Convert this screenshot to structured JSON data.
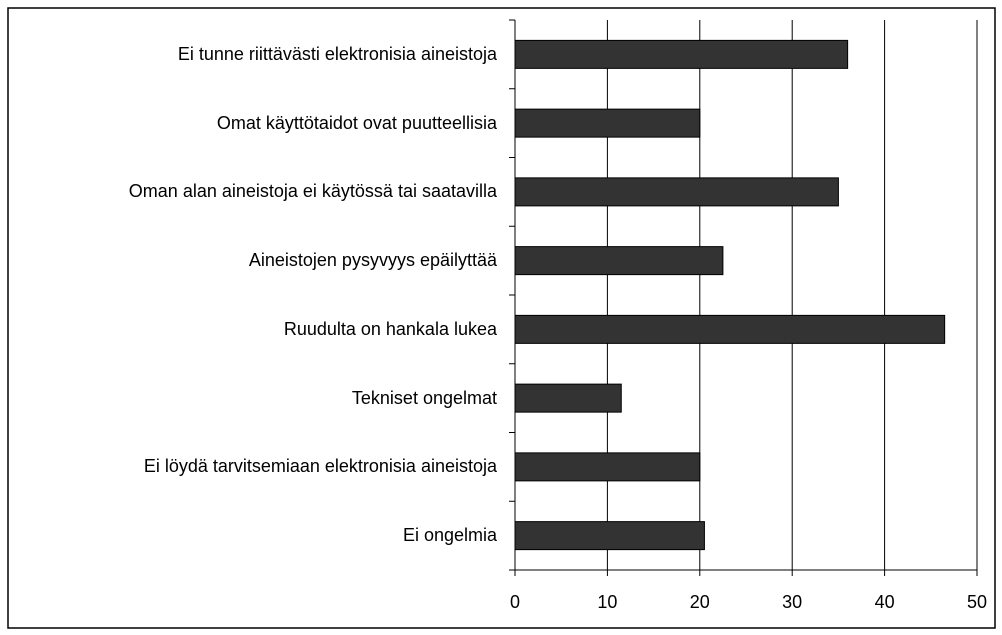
{
  "chart_data": {
    "type": "barh",
    "categories": [
      "Ei tunne riittävästi elektronisia aineistoja",
      "Omat käyttötaidot ovat puutteellisia",
      "Oman alan aineistoja ei käytössä tai saatavilla",
      "Aineistojen pysyvyys epäilyttää",
      "Ruudulta on hankala lukea",
      "Tekniset ongelmat",
      "Ei löydä tarvitsemiaan elektronisia aineistoja",
      "Ei ongelmia"
    ],
    "values": [
      36,
      20,
      35,
      22.5,
      46.5,
      11.5,
      20,
      20.5
    ],
    "color": "#333333",
    "xlim": [
      0,
      50
    ],
    "xticks": [
      0,
      10,
      20,
      30,
      40,
      50
    ],
    "grid": true
  }
}
